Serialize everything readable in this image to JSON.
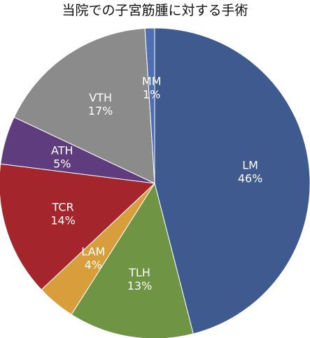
{
  "chart_data": {
    "type": "pie",
    "title": "当院での子宮筋腫に対する手術",
    "categories": [
      "LM",
      "TLH",
      "LAM",
      "TCR",
      "ATH",
      "VTH",
      "MM"
    ],
    "values": [
      46,
      13,
      4,
      14,
      5,
      17,
      1
    ],
    "labels": [
      "46%",
      "13%",
      "4%",
      "14%",
      "5%",
      "17%",
      "1%"
    ],
    "colors": [
      "#3f5a8e",
      "#6e9444",
      "#d99e3c",
      "#a4262c",
      "#5e3c7d",
      "#8b8b8b",
      "#4e70b3"
    ],
    "start_angle_deg": 0,
    "direction": "clockwise",
    "legend": "none"
  }
}
